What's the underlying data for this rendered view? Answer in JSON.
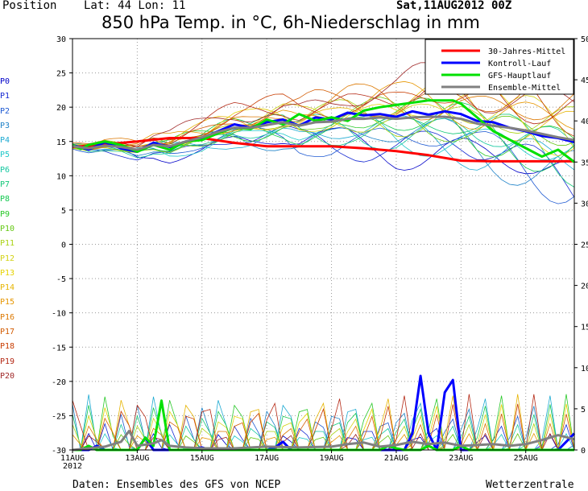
{
  "header": {
    "position_label": "Position",
    "latlon": "Lat: 44  Lon: 11",
    "run": "Sat,11AUG2012 00Z",
    "title": "850 hPa Temp. in °C, 6h-Niederschlag in mm"
  },
  "footer": {
    "source": "Daten: Ensembles des GFS von NCEP",
    "brand": "Wetterzentrale"
  },
  "members": [
    {
      "label": "P0",
      "color": "#0000c8"
    },
    {
      "label": "P1",
      "color": "#1428d2"
    },
    {
      "label": "P2",
      "color": "#1e5ad2"
    },
    {
      "label": "P3",
      "color": "#1e82c8"
    },
    {
      "label": "P4",
      "color": "#1eaad2"
    },
    {
      "label": "P5",
      "color": "#1ec8c8"
    },
    {
      "label": "P6",
      "color": "#14c8a0"
    },
    {
      "label": "P7",
      "color": "#14c878"
    },
    {
      "label": "P8",
      "color": "#14c850"
    },
    {
      "label": "P9",
      "color": "#28c828"
    },
    {
      "label": "P10",
      "color": "#64c814"
    },
    {
      "label": "P11",
      "color": "#aad214"
    },
    {
      "label": "P12",
      "color": "#d2d214"
    },
    {
      "label": "P13",
      "color": "#e6d200"
    },
    {
      "label": "P14",
      "color": "#e6b400"
    },
    {
      "label": "P15",
      "color": "#e69600"
    },
    {
      "label": "P16",
      "color": "#dc7800"
    },
    {
      "label": "P17",
      "color": "#d25a00"
    },
    {
      "label": "P18",
      "color": "#c83c00"
    },
    {
      "label": "P19",
      "color": "#b42814"
    },
    {
      "label": "P20",
      "color": "#a02828"
    }
  ],
  "chart_data": {
    "type": "line",
    "title": "850 hPa Temp. in °C, 6h-Niederschlag in mm",
    "x_range_days": [
      0,
      15.5
    ],
    "x_ticks": [
      {
        "label": "11AUG",
        "sub": "2012",
        "day": 0
      },
      {
        "label": "13AUG",
        "day": 2
      },
      {
        "label": "15AUG",
        "day": 4
      },
      {
        "label": "17AUG",
        "day": 6
      },
      {
        "label": "19AUG",
        "day": 8
      },
      {
        "label": "21AUG",
        "day": 10
      },
      {
        "label": "23AUG",
        "day": 12
      },
      {
        "label": "25AUG",
        "day": 14
      }
    ],
    "y_left": {
      "min": -30,
      "max": 30,
      "step": 5,
      "unit": "°C"
    },
    "y_right": {
      "min": 0,
      "max": 50,
      "step": 5,
      "unit": "mm"
    },
    "grid": true,
    "legend_position": "top-right",
    "series": [
      {
        "name": "30-Jahres-Mittel",
        "color": "#ff0000",
        "axis": "left",
        "width": 3,
        "points": [
          [
            0,
            14.2
          ],
          [
            1,
            14.6
          ],
          [
            2,
            15.0
          ],
          [
            3,
            15.5
          ],
          [
            4,
            15.5
          ],
          [
            5,
            14.8
          ],
          [
            6,
            14.3
          ],
          [
            7,
            14.3
          ],
          [
            8,
            14.3
          ],
          [
            9,
            14.0
          ],
          [
            10,
            13.6
          ],
          [
            11,
            13.0
          ],
          [
            12,
            12.2
          ],
          [
            13,
            12.1
          ],
          [
            14,
            12.1
          ],
          [
            15.5,
            12.1
          ]
        ]
      },
      {
        "name": "Kontroll-Lauf",
        "color": "#0000ff",
        "axis": "left",
        "width": 3,
        "points": [
          [
            0,
            14.5
          ],
          [
            0.5,
            13.8
          ],
          [
            1,
            14.9
          ],
          [
            1.5,
            14.0
          ],
          [
            2,
            13.5
          ],
          [
            2.5,
            14.8
          ],
          [
            3,
            14.2
          ],
          [
            3.5,
            15.0
          ],
          [
            4,
            15.5
          ],
          [
            4.5,
            16.5
          ],
          [
            5,
            17.5
          ],
          [
            5.5,
            17.0
          ],
          [
            6,
            17.8
          ],
          [
            6.5,
            18.2
          ],
          [
            7,
            17.3
          ],
          [
            7.5,
            18.5
          ],
          [
            8,
            18.2
          ],
          [
            8.5,
            19.2
          ],
          [
            9,
            18.8
          ],
          [
            9.5,
            19.0
          ],
          [
            10,
            18.6
          ],
          [
            10.5,
            19.4
          ],
          [
            11,
            18.9
          ],
          [
            11.5,
            19.4
          ],
          [
            12,
            19.0
          ],
          [
            12.5,
            18.0
          ],
          [
            13,
            17.8
          ],
          [
            13.5,
            17.0
          ],
          [
            14,
            16.5
          ],
          [
            14.5,
            15.8
          ],
          [
            15,
            15.5
          ],
          [
            15.5,
            14.9
          ]
        ]
      },
      {
        "name": "GFS-Hauptlauf",
        "color": "#00e000",
        "axis": "left",
        "width": 3,
        "points": [
          [
            0,
            14.5
          ],
          [
            0.25,
            13.9
          ],
          [
            0.5,
            14.5
          ],
          [
            1,
            15.0
          ],
          [
            1.5,
            14.5
          ],
          [
            2,
            13.5
          ],
          [
            2.5,
            14.5
          ],
          [
            3,
            13.8
          ],
          [
            3.5,
            15.0
          ],
          [
            4,
            15.2
          ],
          [
            4.5,
            16.2
          ],
          [
            5,
            17.0
          ],
          [
            5.5,
            16.8
          ],
          [
            6,
            18.2
          ],
          [
            6.5,
            17.5
          ],
          [
            7,
            19.0
          ],
          [
            7.5,
            18.0
          ],
          [
            8,
            18.5
          ],
          [
            8.5,
            18.0
          ],
          [
            9,
            19.5
          ],
          [
            9.5,
            20.0
          ],
          [
            11,
            21.0
          ],
          [
            11.75,
            21.0
          ],
          [
            12,
            20.5
          ],
          [
            13,
            16.5
          ],
          [
            14.5,
            12.8
          ],
          [
            15,
            13.8
          ],
          [
            15.5,
            12.0
          ]
        ]
      },
      {
        "name": "Ensemble-Mittel",
        "color": "#808080",
        "axis": "left",
        "width": 3,
        "points": [
          [
            0,
            14.3
          ],
          [
            0.5,
            14.0
          ],
          [
            1,
            14.4
          ],
          [
            1.5,
            14.2
          ],
          [
            2,
            13.8
          ],
          [
            2.5,
            14.5
          ],
          [
            3,
            14.3
          ],
          [
            3.5,
            15.0
          ],
          [
            4,
            15.6
          ],
          [
            4.5,
            16.4
          ],
          [
            5,
            17.0
          ],
          [
            5.5,
            17.0
          ],
          [
            6,
            17.4
          ],
          [
            6.5,
            17.8
          ],
          [
            7,
            17.3
          ],
          [
            7.5,
            17.8
          ],
          [
            8,
            17.9
          ],
          [
            8.5,
            18.3
          ],
          [
            9,
            18.3
          ],
          [
            9.5,
            18.5
          ],
          [
            10,
            18.3
          ],
          [
            10.5,
            18.5
          ],
          [
            11,
            18.6
          ],
          [
            11.5,
            18.6
          ],
          [
            12,
            18.3
          ],
          [
            12.5,
            17.6
          ],
          [
            13,
            17.3
          ],
          [
            13.5,
            17.0
          ],
          [
            14,
            16.6
          ],
          [
            14.5,
            16.1
          ],
          [
            15,
            15.6
          ],
          [
            15.5,
            15.2
          ]
        ]
      }
    ],
    "precip_series": [
      {
        "name": "Kontroll-Lauf",
        "color": "#0000ff",
        "axis": "right",
        "width": 3,
        "points": [
          [
            0,
            0
          ],
          [
            0.5,
            0
          ],
          [
            0.75,
            0.5
          ],
          [
            1,
            0
          ],
          [
            2,
            0
          ],
          [
            2.25,
            1.5
          ],
          [
            2.5,
            0
          ],
          [
            3,
            0
          ],
          [
            3.5,
            0
          ],
          [
            4,
            0.3
          ],
          [
            4.25,
            0
          ],
          [
            6,
            0
          ],
          [
            6.25,
            0.3
          ],
          [
            6.5,
            1.0
          ],
          [
            6.75,
            0
          ],
          [
            10,
            0
          ],
          [
            10.25,
            0
          ],
          [
            10.5,
            2.0
          ],
          [
            10.75,
            9.0
          ],
          [
            11,
            2.0
          ],
          [
            11.25,
            0
          ],
          [
            11.5,
            7.0
          ],
          [
            11.75,
            8.5
          ],
          [
            12,
            0
          ],
          [
            15,
            0
          ],
          [
            15.25,
            1.0
          ],
          [
            15.5,
            2.0
          ]
        ]
      },
      {
        "name": "GFS-Hauptlauf",
        "color": "#00e000",
        "axis": "right",
        "width": 3,
        "points": [
          [
            0,
            0
          ],
          [
            0.25,
            0
          ],
          [
            0.5,
            0.5
          ],
          [
            0.75,
            0
          ],
          [
            2,
            0
          ],
          [
            2.25,
            1.5
          ],
          [
            2.5,
            0.5
          ],
          [
            2.75,
            6.0
          ],
          [
            3,
            0
          ],
          [
            4,
            0
          ],
          [
            6,
            0
          ],
          [
            8,
            0
          ],
          [
            9,
            0
          ],
          [
            9.5,
            0
          ],
          [
            9.75,
            0.5
          ],
          [
            10,
            0.2
          ],
          [
            10.25,
            0
          ],
          [
            10.75,
            0
          ],
          [
            11,
            0.5
          ],
          [
            11.25,
            0
          ],
          [
            11.75,
            0
          ],
          [
            12,
            0.5
          ],
          [
            12.25,
            0
          ],
          [
            13,
            0
          ],
          [
            15.5,
            0
          ]
        ]
      },
      {
        "name": "Ensemble-Mittel",
        "color": "#808080",
        "axis": "right",
        "width": 3,
        "points": [
          [
            0,
            0
          ],
          [
            1,
            0.4
          ],
          [
            1.5,
            1.0
          ],
          [
            1.75,
            2.3
          ],
          [
            2,
            0.5
          ],
          [
            2.5,
            0.8
          ],
          [
            2.75,
            1.2
          ],
          [
            3,
            0.5
          ],
          [
            3.5,
            0.3
          ],
          [
            4,
            0.2
          ],
          [
            5,
            0.2
          ],
          [
            6,
            0.4
          ],
          [
            7,
            0.3
          ],
          [
            8,
            0.4
          ],
          [
            8.5,
            0.7
          ],
          [
            9,
            0.9
          ],
          [
            9.5,
            0.4
          ],
          [
            10,
            0.6
          ],
          [
            10.5,
            1.0
          ],
          [
            11,
            0.7
          ],
          [
            11.5,
            0.9
          ],
          [
            12,
            0.5
          ],
          [
            12.5,
            0.6
          ],
          [
            13,
            0.7
          ],
          [
            13.5,
            0.5
          ],
          [
            14,
            0.7
          ],
          [
            14.5,
            1.2
          ],
          [
            15,
            1.8
          ],
          [
            15.5,
            1.3
          ]
        ]
      }
    ]
  }
}
